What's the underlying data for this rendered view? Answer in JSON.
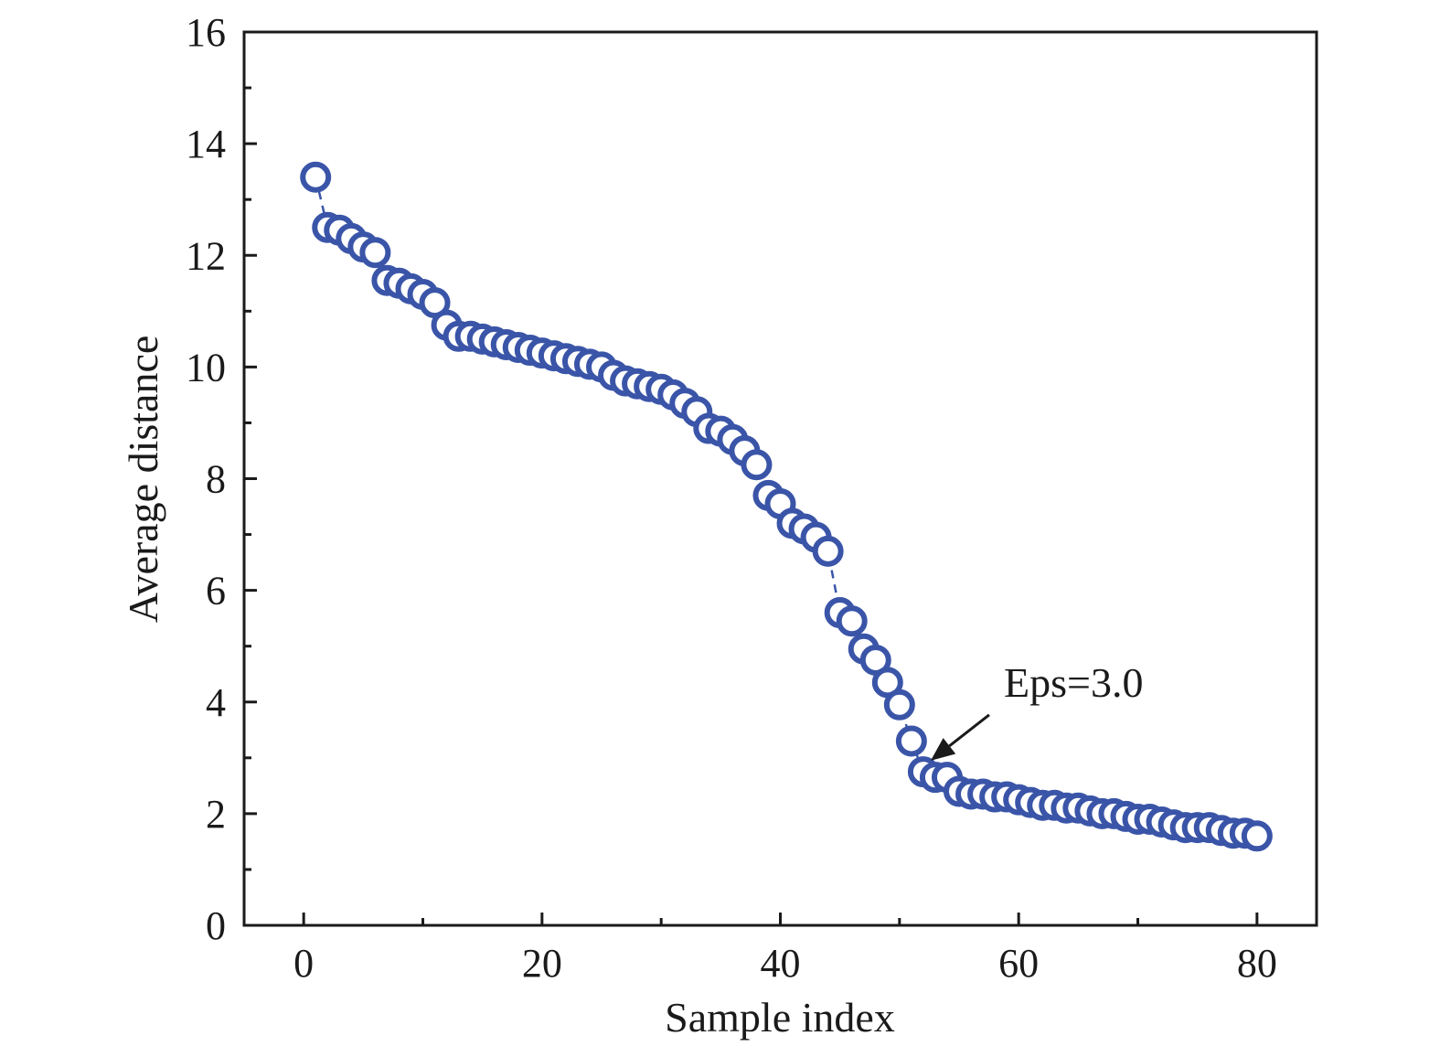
{
  "chart_data": {
    "type": "scatter",
    "title": "",
    "xlabel": "Sample index",
    "ylabel": "Average distance",
    "xlim": [
      -5,
      85
    ],
    "ylim": [
      0,
      16
    ],
    "xticks": [
      0,
      20,
      40,
      60,
      80
    ],
    "yticks": [
      0,
      2,
      4,
      6,
      8,
      10,
      12,
      14,
      16
    ],
    "xtick_labels": [
      "0",
      "20",
      "40",
      "60",
      "80"
    ],
    "ytick_labels": [
      "0",
      "2",
      "4",
      "6",
      "8",
      "10",
      "12",
      "14",
      "16"
    ],
    "grid": false,
    "legend": "none",
    "marker": "open-circle",
    "line_style": "dashed",
    "color": "#3a55a8",
    "annotation": {
      "text": "Eps=3.0",
      "x": 53,
      "y": 3.0
    },
    "series": [
      {
        "x": [
          1,
          2,
          3,
          4,
          5,
          6,
          7,
          8,
          9,
          10,
          11,
          12,
          13,
          14,
          15,
          16,
          17,
          18,
          19,
          20,
          21,
          22,
          23,
          24,
          25,
          26,
          27,
          28,
          29,
          30,
          31,
          32,
          33,
          34,
          35,
          36,
          37,
          38,
          39,
          40,
          41,
          42,
          43,
          44,
          45,
          46,
          47,
          48,
          49,
          50,
          51,
          52,
          53,
          54,
          55,
          56,
          57,
          58,
          59,
          60,
          61,
          62,
          63,
          64,
          65,
          66,
          67,
          68,
          69,
          70,
          71,
          72,
          73,
          74,
          75,
          76,
          77,
          78,
          79,
          80
        ],
        "y": [
          13.4,
          12.5,
          12.45,
          12.3,
          12.15,
          12.05,
          11.55,
          11.5,
          11.4,
          11.3,
          11.15,
          10.75,
          10.55,
          10.55,
          10.5,
          10.45,
          10.4,
          10.35,
          10.3,
          10.25,
          10.2,
          10.15,
          10.1,
          10.05,
          10.0,
          9.85,
          9.75,
          9.7,
          9.65,
          9.6,
          9.5,
          9.35,
          9.2,
          8.9,
          8.85,
          8.7,
          8.5,
          8.25,
          7.7,
          7.55,
          7.2,
          7.1,
          6.95,
          6.7,
          5.6,
          5.45,
          4.95,
          4.75,
          4.35,
          3.95,
          3.3,
          2.75,
          2.65,
          2.65,
          2.4,
          2.35,
          2.35,
          2.3,
          2.3,
          2.25,
          2.2,
          2.15,
          2.15,
          2.1,
          2.1,
          2.05,
          2.0,
          2.0,
          1.95,
          1.9,
          1.9,
          1.85,
          1.8,
          1.75,
          1.75,
          1.75,
          1.7,
          1.65,
          1.65,
          1.6
        ]
      }
    ]
  }
}
